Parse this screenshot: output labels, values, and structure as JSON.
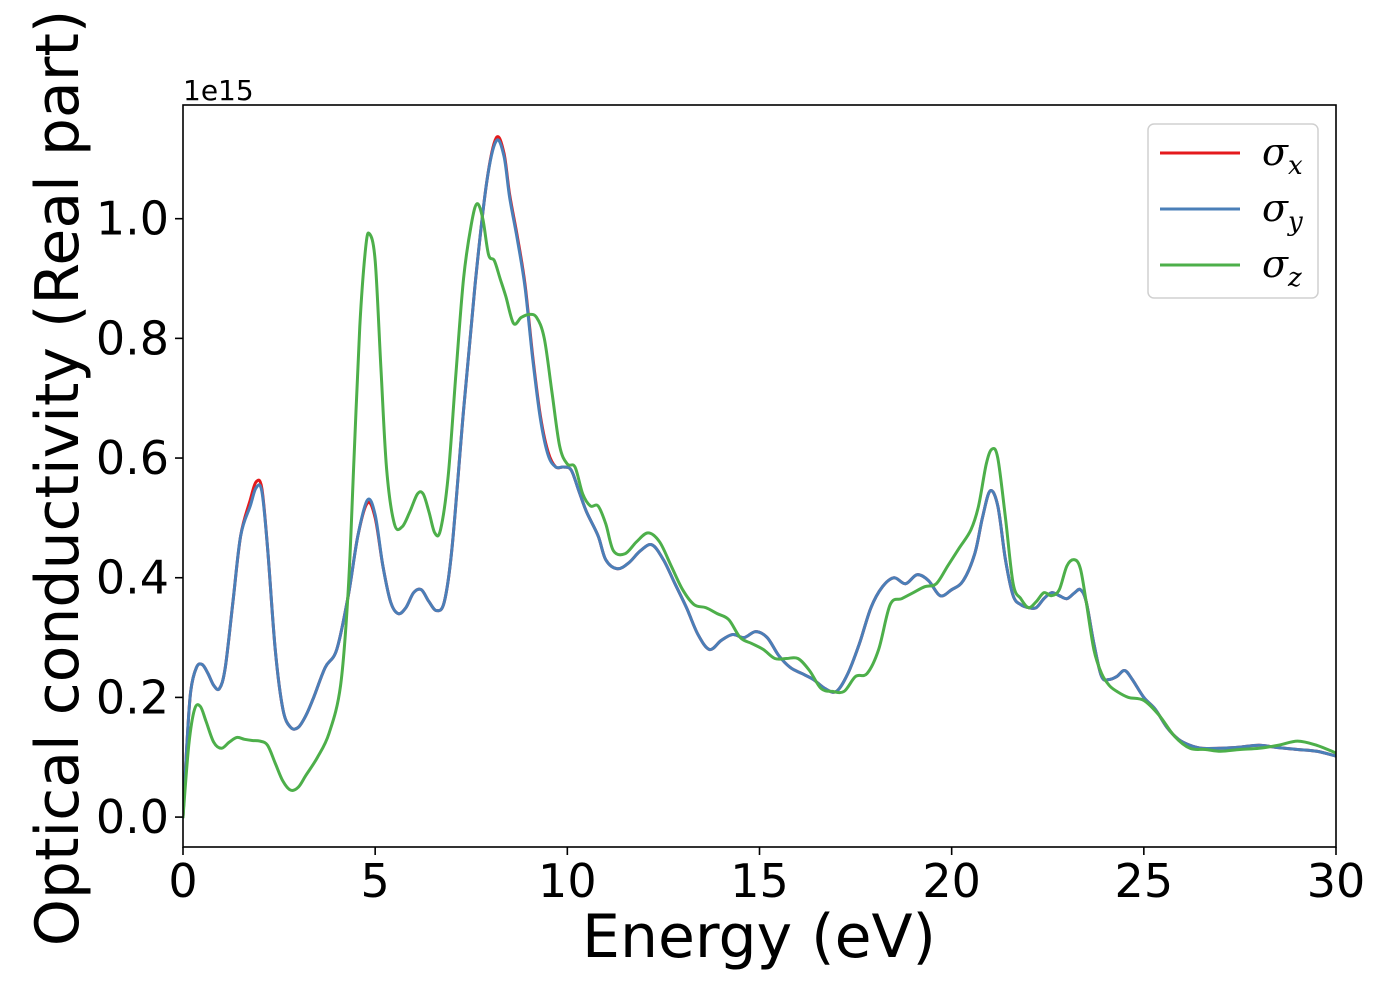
{
  "chart_data": {
    "type": "line",
    "title": "",
    "xlabel": "Energy (eV)",
    "ylabel": "Optical conductivity (Real part)",
    "y_offset_label": "1e15",
    "xlim": [
      0,
      30
    ],
    "ylim": [
      -0.05,
      1.19
    ],
    "xticks": [
      0,
      5,
      10,
      15,
      20,
      25,
      30
    ],
    "xtick_labels": [
      "0",
      "5",
      "10",
      "15",
      "20",
      "25",
      "30"
    ],
    "yticks": [
      0.0,
      0.2,
      0.4,
      0.6,
      0.8,
      1.0
    ],
    "ytick_labels": [
      "0.0",
      "0.2",
      "0.4",
      "0.6",
      "0.8",
      "1.0"
    ],
    "grid": false,
    "legend_position": "top-right",
    "series": [
      {
        "name": "σx",
        "symbol": "σ",
        "subscript": "x",
        "color": "#e41a1c",
        "x": [
          0,
          0.1,
          0.2,
          0.35,
          0.5,
          0.65,
          0.8,
          0.95,
          1.1,
          1.3,
          1.5,
          1.75,
          1.9,
          2.05,
          2.2,
          2.4,
          2.6,
          2.8,
          3.0,
          3.2,
          3.4,
          3.7,
          4.0,
          4.3,
          4.55,
          4.8,
          5.0,
          5.2,
          5.4,
          5.6,
          5.8,
          6.0,
          6.2,
          6.4,
          6.6,
          6.8,
          7.0,
          7.3,
          7.6,
          7.9,
          8.15,
          8.35,
          8.5,
          8.7,
          8.9,
          9.1,
          9.3,
          9.5,
          9.7,
          9.9,
          10.1,
          10.3,
          10.5,
          10.8,
          11.0,
          11.3,
          11.6,
          11.9,
          12.2,
          12.5,
          12.8,
          13.1,
          13.4,
          13.7,
          14.0,
          14.3,
          14.6,
          14.9,
          15.2,
          15.5,
          15.8,
          16.1,
          16.4,
          16.7,
          17.0,
          17.3,
          17.6,
          17.9,
          18.2,
          18.5,
          18.8,
          19.1,
          19.4,
          19.7,
          20.0,
          20.3,
          20.6,
          20.8,
          21.0,
          21.2,
          21.4,
          21.6,
          21.8,
          22.0,
          22.2,
          22.4,
          22.6,
          22.8,
          23.0,
          23.2,
          23.35,
          23.5,
          23.7,
          23.9,
          24.1,
          24.3,
          24.5,
          24.7,
          25.0,
          25.3,
          25.6,
          25.9,
          26.2,
          26.5,
          27.0,
          27.5,
          28.0,
          28.5,
          29.0,
          29.5,
          30.0
        ],
        "values": [
          0.0,
          0.12,
          0.21,
          0.25,
          0.255,
          0.24,
          0.22,
          0.215,
          0.25,
          0.36,
          0.47,
          0.53,
          0.56,
          0.55,
          0.45,
          0.28,
          0.18,
          0.15,
          0.15,
          0.17,
          0.2,
          0.25,
          0.28,
          0.37,
          0.47,
          0.525,
          0.5,
          0.42,
          0.36,
          0.34,
          0.35,
          0.375,
          0.38,
          0.36,
          0.345,
          0.36,
          0.45,
          0.68,
          0.89,
          1.06,
          1.135,
          1.11,
          1.04,
          0.97,
          0.89,
          0.77,
          0.67,
          0.61,
          0.585,
          0.585,
          0.58,
          0.545,
          0.51,
          0.47,
          0.43,
          0.415,
          0.425,
          0.445,
          0.455,
          0.43,
          0.39,
          0.35,
          0.305,
          0.28,
          0.295,
          0.305,
          0.3,
          0.31,
          0.3,
          0.27,
          0.25,
          0.24,
          0.23,
          0.215,
          0.21,
          0.24,
          0.29,
          0.35,
          0.385,
          0.4,
          0.39,
          0.405,
          0.395,
          0.37,
          0.38,
          0.395,
          0.44,
          0.5,
          0.545,
          0.52,
          0.43,
          0.37,
          0.355,
          0.35,
          0.35,
          0.365,
          0.375,
          0.37,
          0.365,
          0.375,
          0.38,
          0.36,
          0.29,
          0.235,
          0.23,
          0.235,
          0.245,
          0.23,
          0.2,
          0.18,
          0.15,
          0.13,
          0.12,
          0.115,
          0.115,
          0.117,
          0.12,
          0.116,
          0.113,
          0.11,
          0.102
        ]
      },
      {
        "name": "σy",
        "symbol": "σ",
        "subscript": "y",
        "color": "#4a7fb8",
        "x": [
          0,
          0.1,
          0.2,
          0.35,
          0.5,
          0.65,
          0.8,
          0.95,
          1.1,
          1.3,
          1.5,
          1.75,
          1.9,
          2.05,
          2.2,
          2.4,
          2.6,
          2.8,
          3.0,
          3.2,
          3.4,
          3.7,
          4.0,
          4.3,
          4.55,
          4.8,
          5.0,
          5.2,
          5.4,
          5.6,
          5.8,
          6.0,
          6.2,
          6.4,
          6.6,
          6.8,
          7.0,
          7.3,
          7.6,
          7.9,
          8.15,
          8.35,
          8.5,
          8.7,
          8.9,
          9.1,
          9.3,
          9.5,
          9.7,
          9.9,
          10.1,
          10.3,
          10.5,
          10.8,
          11.0,
          11.3,
          11.6,
          11.9,
          12.2,
          12.5,
          12.8,
          13.1,
          13.4,
          13.7,
          14.0,
          14.3,
          14.6,
          14.9,
          15.2,
          15.5,
          15.8,
          16.1,
          16.4,
          16.7,
          17.0,
          17.3,
          17.6,
          17.9,
          18.2,
          18.5,
          18.8,
          19.1,
          19.4,
          19.7,
          20.0,
          20.3,
          20.6,
          20.8,
          21.0,
          21.2,
          21.4,
          21.6,
          21.8,
          22.0,
          22.2,
          22.4,
          22.6,
          22.8,
          23.0,
          23.2,
          23.35,
          23.5,
          23.7,
          23.9,
          24.1,
          24.3,
          24.5,
          24.7,
          25.0,
          25.3,
          25.6,
          25.9,
          26.2,
          26.5,
          27.0,
          27.5,
          28.0,
          28.5,
          29.0,
          29.5,
          30.0
        ],
        "values": [
          0.0,
          0.12,
          0.21,
          0.25,
          0.255,
          0.24,
          0.22,
          0.215,
          0.25,
          0.36,
          0.47,
          0.52,
          0.55,
          0.545,
          0.45,
          0.28,
          0.18,
          0.15,
          0.15,
          0.17,
          0.2,
          0.25,
          0.28,
          0.37,
          0.47,
          0.53,
          0.505,
          0.42,
          0.36,
          0.34,
          0.35,
          0.375,
          0.38,
          0.36,
          0.345,
          0.36,
          0.45,
          0.68,
          0.89,
          1.06,
          1.13,
          1.105,
          1.035,
          0.965,
          0.885,
          0.765,
          0.665,
          0.605,
          0.585,
          0.585,
          0.58,
          0.545,
          0.51,
          0.47,
          0.43,
          0.415,
          0.425,
          0.445,
          0.455,
          0.43,
          0.39,
          0.35,
          0.305,
          0.28,
          0.295,
          0.305,
          0.3,
          0.31,
          0.3,
          0.27,
          0.25,
          0.24,
          0.23,
          0.215,
          0.21,
          0.24,
          0.29,
          0.35,
          0.385,
          0.4,
          0.39,
          0.405,
          0.395,
          0.37,
          0.38,
          0.395,
          0.44,
          0.5,
          0.545,
          0.52,
          0.43,
          0.37,
          0.355,
          0.35,
          0.35,
          0.365,
          0.375,
          0.37,
          0.365,
          0.375,
          0.38,
          0.36,
          0.29,
          0.235,
          0.23,
          0.235,
          0.245,
          0.23,
          0.2,
          0.18,
          0.15,
          0.13,
          0.12,
          0.115,
          0.115,
          0.117,
          0.12,
          0.116,
          0.113,
          0.11,
          0.102
        ]
      },
      {
        "name": "σz",
        "symbol": "σ",
        "subscript": "z",
        "color": "#4daf4a",
        "x": [
          0,
          0.15,
          0.3,
          0.45,
          0.6,
          0.8,
          1.0,
          1.2,
          1.4,
          1.6,
          1.8,
          2.0,
          2.2,
          2.4,
          2.6,
          2.8,
          3.0,
          3.2,
          3.5,
          3.8,
          4.1,
          4.3,
          4.45,
          4.6,
          4.75,
          4.85,
          5.0,
          5.15,
          5.3,
          5.5,
          5.7,
          5.9,
          6.1,
          6.25,
          6.4,
          6.55,
          6.7,
          6.9,
          7.1,
          7.3,
          7.5,
          7.65,
          7.8,
          7.95,
          8.1,
          8.25,
          8.4,
          8.6,
          8.8,
          9.0,
          9.2,
          9.4,
          9.6,
          9.8,
          10.0,
          10.2,
          10.4,
          10.6,
          10.8,
          11.0,
          11.2,
          11.5,
          11.8,
          12.1,
          12.4,
          12.7,
          13.0,
          13.3,
          13.6,
          13.9,
          14.2,
          14.5,
          14.8,
          15.1,
          15.4,
          15.7,
          16.0,
          16.3,
          16.6,
          16.9,
          17.2,
          17.5,
          17.8,
          18.1,
          18.4,
          18.7,
          19.0,
          19.3,
          19.6,
          19.9,
          20.2,
          20.5,
          20.7,
          20.9,
          21.05,
          21.2,
          21.4,
          21.6,
          21.8,
          22.0,
          22.2,
          22.4,
          22.6,
          22.8,
          23.0,
          23.2,
          23.35,
          23.5,
          23.7,
          23.9,
          24.1,
          24.3,
          24.6,
          25.0,
          25.4,
          25.8,
          26.2,
          26.6,
          27.0,
          27.5,
          28.0,
          28.5,
          29.0,
          29.5,
          30.0
        ],
        "values": [
          0.0,
          0.12,
          0.18,
          0.185,
          0.16,
          0.125,
          0.115,
          0.125,
          0.133,
          0.13,
          0.128,
          0.127,
          0.12,
          0.09,
          0.06,
          0.045,
          0.05,
          0.07,
          0.1,
          0.14,
          0.22,
          0.38,
          0.6,
          0.82,
          0.95,
          0.975,
          0.93,
          0.75,
          0.58,
          0.49,
          0.485,
          0.51,
          0.54,
          0.54,
          0.51,
          0.475,
          0.48,
          0.57,
          0.74,
          0.9,
          0.99,
          1.025,
          1.0,
          0.94,
          0.93,
          0.9,
          0.87,
          0.825,
          0.835,
          0.84,
          0.835,
          0.8,
          0.71,
          0.62,
          0.59,
          0.585,
          0.54,
          0.52,
          0.52,
          0.49,
          0.445,
          0.44,
          0.46,
          0.475,
          0.46,
          0.42,
          0.38,
          0.355,
          0.35,
          0.34,
          0.33,
          0.3,
          0.29,
          0.28,
          0.265,
          0.265,
          0.265,
          0.245,
          0.215,
          0.21,
          0.21,
          0.235,
          0.24,
          0.28,
          0.355,
          0.365,
          0.375,
          0.385,
          0.39,
          0.42,
          0.45,
          0.48,
          0.52,
          0.59,
          0.615,
          0.6,
          0.5,
          0.39,
          0.365,
          0.35,
          0.36,
          0.375,
          0.37,
          0.38,
          0.42,
          0.43,
          0.415,
          0.36,
          0.28,
          0.24,
          0.22,
          0.21,
          0.2,
          0.195,
          0.17,
          0.135,
          0.115,
          0.113,
          0.11,
          0.113,
          0.115,
          0.12,
          0.127,
          0.12,
          0.107
        ]
      }
    ]
  }
}
